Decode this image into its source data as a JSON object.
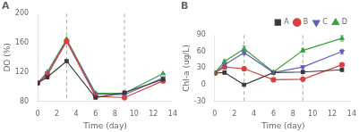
{
  "chart_data": [
    {
      "type": "line",
      "title": "A",
      "x_label": "Time (day)",
      "y_label": "DO (%)",
      "x": [
        0,
        1,
        3,
        6,
        9,
        13
      ],
      "xlim": [
        0,
        14
      ],
      "xticks": [
        0,
        2,
        4,
        6,
        8,
        10,
        12,
        14
      ],
      "ylim": [
        80,
        200
      ],
      "yticks": [
        80,
        120,
        160,
        200
      ],
      "vlines": [
        3,
        9
      ],
      "grid": false,
      "legend": false,
      "series": [
        {
          "name": "A",
          "color": "#3a3a3a",
          "marker": "square",
          "values": [
            105,
            113,
            135,
            85,
            92,
            110
          ]
        },
        {
          "name": "B",
          "color": "#d94040",
          "marker": "circle",
          "values": [
            105,
            116,
            162,
            87,
            85,
            108
          ]
        },
        {
          "name": "C",
          "color": "#6060bb",
          "marker": "triangle_down",
          "values": [
            105,
            118,
            163,
            90,
            89,
            112
          ]
        },
        {
          "name": "D",
          "color": "#40a040",
          "marker": "triangle_up",
          "values": [
            105,
            120,
            165,
            91,
            91,
            118
          ]
        }
      ]
    },
    {
      "type": "line",
      "title": "B",
      "x_label": "Time (day)",
      "y_label": "Chl-a (ug/L)",
      "x": [
        0,
        1,
        3,
        6,
        9,
        13
      ],
      "xlim": [
        0,
        14
      ],
      "xticks": [
        0,
        2,
        4,
        6,
        8,
        10,
        12,
        14
      ],
      "ylim": [
        -30,
        90
      ],
      "yticks": [
        -30,
        0,
        30,
        60,
        90
      ],
      "vlines": [
        3,
        9
      ],
      "grid": false,
      "legend": "upper right",
      "series": [
        {
          "name": "A",
          "color": "#3a3a3a",
          "marker": "square",
          "values": [
            21,
            22,
            0,
            22,
            23,
            27
          ],
          "errors": [
            1,
            1,
            1,
            1,
            1,
            2
          ]
        },
        {
          "name": "B",
          "color": "#d94040",
          "marker": "circle",
          "values": [
            21,
            32,
            29,
            9,
            10,
            36
          ],
          "errors": [
            1,
            2,
            2,
            1,
            1,
            2
          ]
        },
        {
          "name": "C",
          "color": "#6060bb",
          "marker": "triangle_down",
          "values": [
            21,
            36,
            58,
            22,
            32,
            60
          ],
          "errors": [
            1,
            3,
            4,
            2,
            2,
            4
          ]
        },
        {
          "name": "D",
          "color": "#40a040",
          "marker": "triangle_up",
          "values": [
            21,
            42,
            65,
            23,
            62,
            84
          ],
          "errors": [
            2,
            3,
            5,
            2,
            3,
            5
          ]
        }
      ]
    }
  ]
}
